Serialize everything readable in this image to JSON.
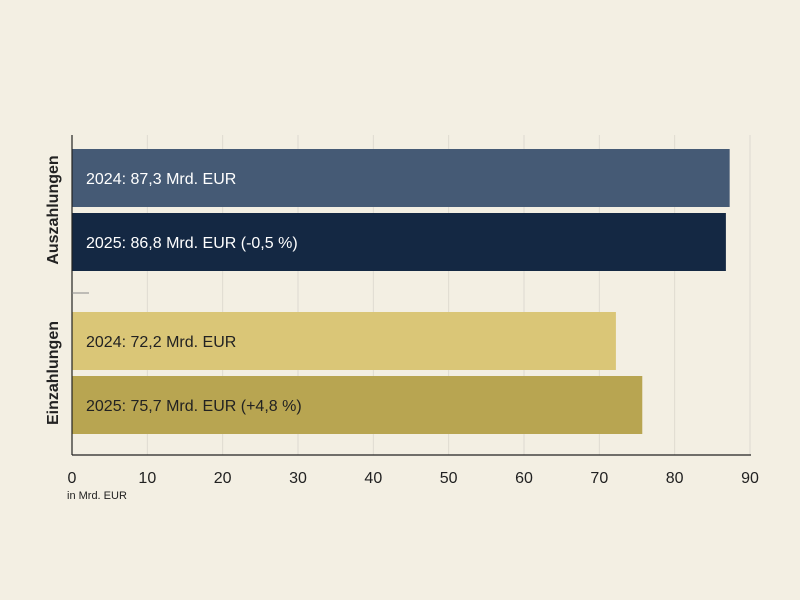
{
  "chart_data": {
    "type": "bar",
    "orientation": "horizontal",
    "groups": [
      {
        "name": "Auszahlungen",
        "bars": [
          {
            "label": "2024: 87,3 Mrd. EUR",
            "value": 87.3,
            "color": "#455a75",
            "text_color": "#ffffff"
          },
          {
            "label": "2025: 86,8 Mrd. EUR (-0,5 %)",
            "value": 86.8,
            "color": "#142843",
            "text_color": "#ffffff"
          }
        ]
      },
      {
        "name": "Einzahlungen",
        "bars": [
          {
            "label": "2024: 72,2 Mrd. EUR",
            "value": 72.2,
            "color": "#dac677",
            "text_color": "#222222"
          },
          {
            "label": "2025: 75,7 Mrd. EUR (+4,8 %)",
            "value": 75.7,
            "color": "#b8a551",
            "text_color": "#222222"
          }
        ]
      }
    ],
    "x_ticks": [
      "0",
      "10",
      "20",
      "30",
      "40",
      "50",
      "60",
      "70",
      "80",
      "90"
    ],
    "xlim": [
      0,
      90
    ],
    "xlabel": "in Mrd. EUR",
    "grid": true,
    "colors": {
      "background": "#f3efe3",
      "gridline": "#dedad0",
      "axis": "#222222"
    }
  }
}
